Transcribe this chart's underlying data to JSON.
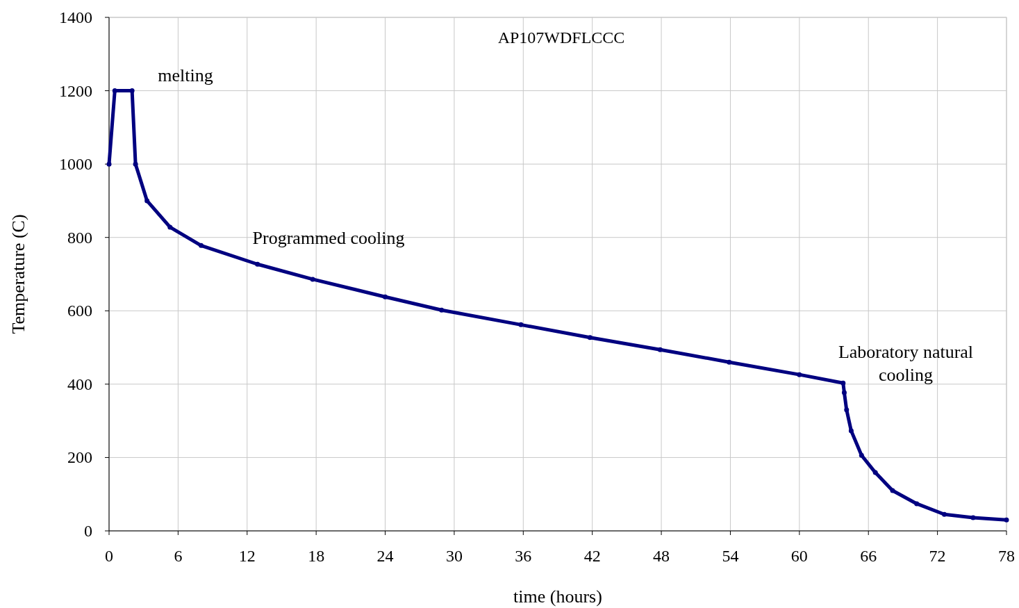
{
  "chart_data": {
    "type": "line",
    "title": "AP107WDFLCCC",
    "xlabel": "time (hours)",
    "ylabel": "Temperature (C)",
    "x": [
      0,
      0.5,
      2.0,
      2.3,
      3.3,
      5.3,
      8.0,
      12.9,
      17.7,
      24,
      28.9,
      35.8,
      41.8,
      47.9,
      53.9,
      60,
      63.8,
      63.9,
      64.1,
      64.5,
      65.4,
      66.6,
      68.1,
      70.2,
      72.6,
      75.1,
      78
    ],
    "series": [
      {
        "color": "#000080",
        "values": [
          1000,
          1200,
          1200,
          1000,
          900,
          828,
          778,
          727,
          686,
          638,
          602,
          562,
          527,
          494,
          460,
          426,
          403,
          377,
          330,
          273,
          206,
          159,
          110,
          74,
          45,
          36,
          30
        ]
      }
    ],
    "xlim": [
      0,
      78
    ],
    "xticks": [
      0,
      6,
      12,
      18,
      24,
      30,
      36,
      42,
      48,
      54,
      60,
      66,
      72,
      78
    ],
    "ylim": [
      0,
      1400
    ],
    "yticks": [
      0,
      200,
      400,
      600,
      800,
      1000,
      1200,
      1400
    ],
    "grid": true,
    "marker": "circle",
    "line_style": "solid",
    "annotations": [
      "melting",
      "Programmed cooling",
      "Laboratory natural cooling"
    ]
  }
}
